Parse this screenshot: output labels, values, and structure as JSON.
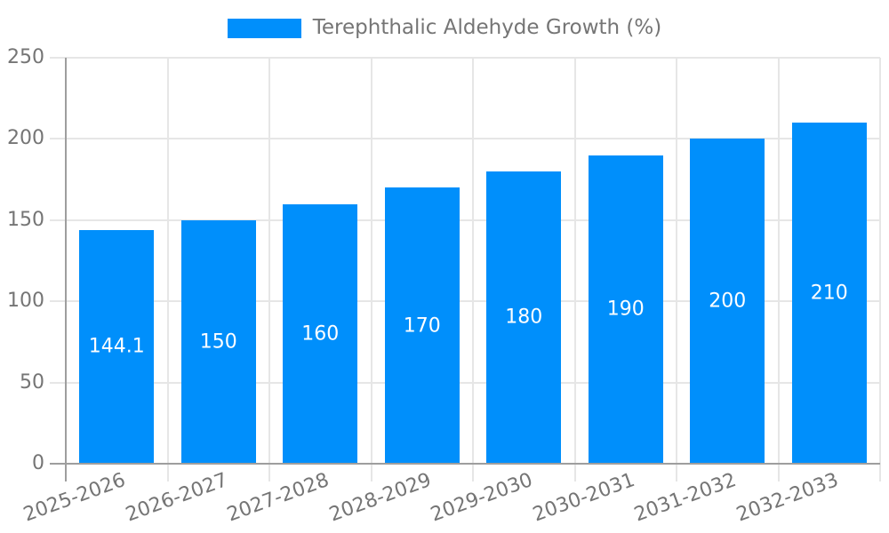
{
  "chart_data": {
    "type": "bar",
    "title": "",
    "categories": [
      "2025-2026",
      "2026-2027",
      "2027-2028",
      "2028-2029",
      "2029-2030",
      "2030-2031",
      "2031-2032",
      "2032-2033"
    ],
    "series": [
      {
        "name": "Terephthalic Aldehyde Growth (%)",
        "values": [
          144.1,
          150,
          160,
          170,
          180,
          190,
          200,
          210
        ]
      }
    ],
    "value_labels": [
      "144.1",
      "150",
      "160",
      "170",
      "180",
      "190",
      "200",
      "210"
    ],
    "xlabel": "",
    "ylabel": "",
    "ylim": [
      0,
      250
    ],
    "ytick_step": 50,
    "ytick_labels": [
      "0",
      "50",
      "100",
      "150",
      "200",
      "250"
    ],
    "grid": "both",
    "legend_position": "top",
    "x_label_rotation_deg": -20,
    "colors": {
      "bar": "#008ffb",
      "grid_light": "#e6e6e6",
      "grid_dark": "#9e9e9e",
      "tick_text": "#757575",
      "value_text": "#ffffff",
      "background": "#ffffff"
    }
  }
}
